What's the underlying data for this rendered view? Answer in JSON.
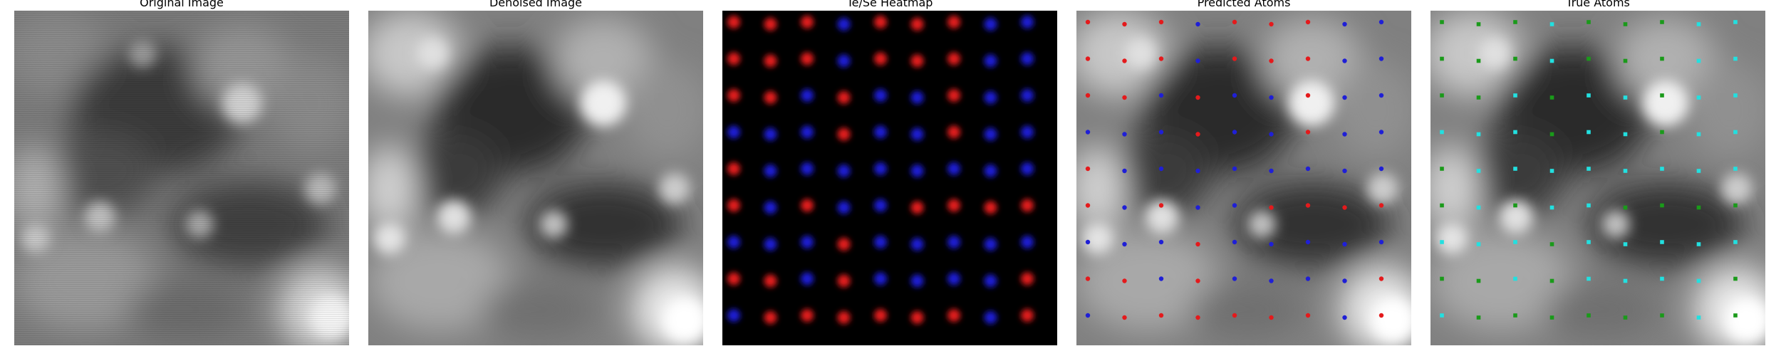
{
  "panels": [
    {
      "title": "Original Image"
    },
    {
      "title": "Denoised Image"
    },
    {
      "title": "Te/Se Heatmap"
    },
    {
      "title": "Predicted Atoms"
    },
    {
      "title": "True Atoms"
    }
  ],
  "colors": {
    "te": "#e41a1c",
    "se": "#1f1fd6",
    "true_te": "#1a9a1a",
    "true_se": "#22e0e0",
    "heatmap_bg": "#000000"
  },
  "legend_note": "",
  "heatmap_labels": [
    "TTTSTTTSS",
    "TTTSTTTSS",
    "TTSTSSTSS",
    "SSSTSSTSS",
    "TSSSSSSSS",
    "TSTSSTTTT",
    "SSSTSSSSS",
    "TTSTSSSST",
    "STTTTTTST"
  ],
  "predicted_labels": [
    "TTTSTTTSS",
    "TTTSTTTSS",
    "TTSTSSTSS",
    "SSSTSSTSS",
    "TSSSSSSSS",
    "TSTSSTTTT",
    "SSSTSSSSS",
    "TTSTSSSST",
    "STTTTTTST"
  ],
  "true_labels": [
    "TTTSTTTSS",
    "TTTSTTTSS",
    "TTSTSSTSS",
    "SSSTSSTSS",
    "TSSSSSSSS",
    "TSTSSTTTT",
    "SSSTSSSSS",
    "TTSTSSSST",
    "STTTTTTST"
  ]
}
